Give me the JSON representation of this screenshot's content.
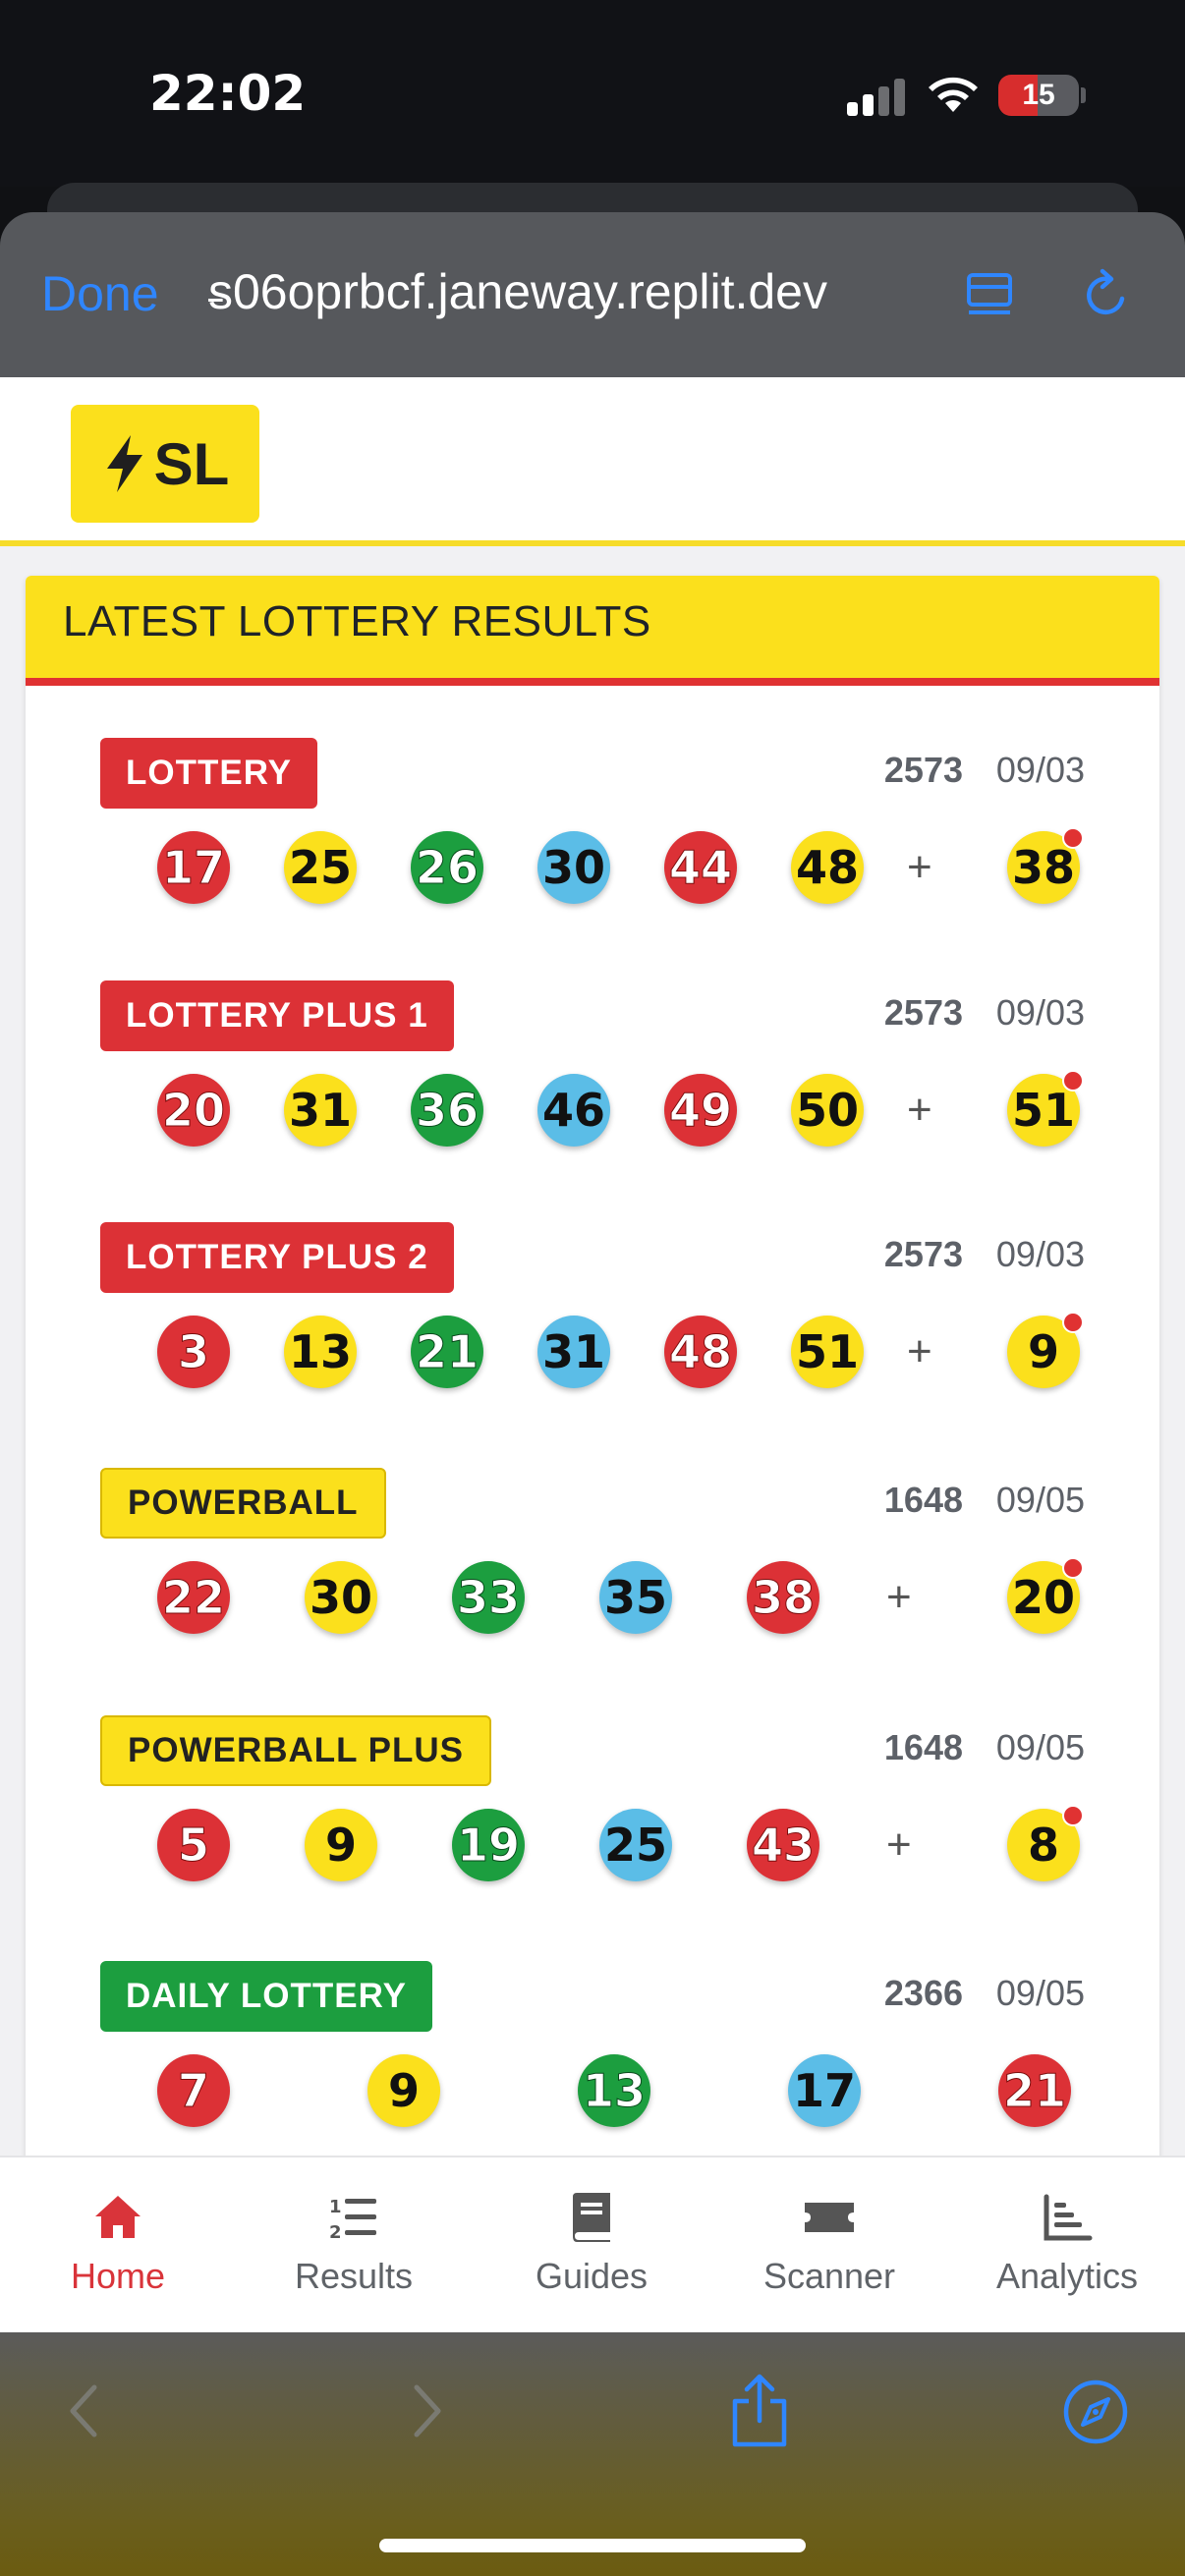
{
  "status_bar": {
    "time": "22:02",
    "battery": "15"
  },
  "browser": {
    "done_label": "Done",
    "url": "̶s06oprbcf.janeway.replit.dev"
  },
  "app": {
    "logo_text": "SL"
  },
  "results": {
    "title": "LATEST LOTTERY RESULTS",
    "games": [
      {
        "name": "LOTTERY",
        "badge_color": "red",
        "draw": "2573",
        "date": "09/03",
        "balls": [
          {
            "n": "17",
            "c": "red"
          },
          {
            "n": "25",
            "c": "yellow"
          },
          {
            "n": "26",
            "c": "green"
          },
          {
            "n": "30",
            "c": "blue"
          },
          {
            "n": "44",
            "c": "red"
          },
          {
            "n": "48",
            "c": "yellow"
          }
        ],
        "plus": "+",
        "bonus": {
          "n": "38",
          "c": "yellow"
        }
      },
      {
        "name": "LOTTERY PLUS 1",
        "badge_color": "red",
        "draw": "2573",
        "date": "09/03",
        "balls": [
          {
            "n": "20",
            "c": "red"
          },
          {
            "n": "31",
            "c": "yellow"
          },
          {
            "n": "36",
            "c": "green"
          },
          {
            "n": "46",
            "c": "blue"
          },
          {
            "n": "49",
            "c": "red"
          },
          {
            "n": "50",
            "c": "yellow"
          }
        ],
        "plus": "+",
        "bonus": {
          "n": "51",
          "c": "yellow"
        }
      },
      {
        "name": "LOTTERY PLUS 2",
        "badge_color": "red",
        "draw": "2573",
        "date": "09/03",
        "balls": [
          {
            "n": "3",
            "c": "red"
          },
          {
            "n": "13",
            "c": "yellow"
          },
          {
            "n": "21",
            "c": "green"
          },
          {
            "n": "31",
            "c": "blue"
          },
          {
            "n": "48",
            "c": "red"
          },
          {
            "n": "51",
            "c": "yellow"
          }
        ],
        "plus": "+",
        "bonus": {
          "n": "9",
          "c": "yellow"
        }
      },
      {
        "name": "POWERBALL",
        "badge_color": "yellow",
        "draw": "1648",
        "date": "09/05",
        "balls": [
          {
            "n": "22",
            "c": "red"
          },
          {
            "n": "30",
            "c": "yellow"
          },
          {
            "n": "33",
            "c": "green"
          },
          {
            "n": "35",
            "c": "blue"
          },
          {
            "n": "38",
            "c": "red"
          }
        ],
        "plus": "+",
        "bonus": {
          "n": "20",
          "c": "yellow"
        }
      },
      {
        "name": "POWERBALL PLUS",
        "badge_color": "yellow",
        "draw": "1648",
        "date": "09/05",
        "balls": [
          {
            "n": "5",
            "c": "red"
          },
          {
            "n": "9",
            "c": "yellow"
          },
          {
            "n": "19",
            "c": "green"
          },
          {
            "n": "25",
            "c": "blue"
          },
          {
            "n": "43",
            "c": "red"
          }
        ],
        "plus": "+",
        "bonus": {
          "n": "8",
          "c": "yellow"
        }
      },
      {
        "name": "DAILY LOTTERY",
        "badge_color": "green",
        "draw": "2366",
        "date": "09/05",
        "balls": [
          {
            "n": "7",
            "c": "red"
          },
          {
            "n": "9",
            "c": "yellow"
          },
          {
            "n": "13",
            "c": "green"
          },
          {
            "n": "17",
            "c": "blue"
          },
          {
            "n": "21",
            "c": "red"
          }
        ],
        "plus": "",
        "bonus": null
      }
    ]
  },
  "nav": {
    "items": [
      {
        "label": "Home",
        "icon": "home-icon",
        "active": true
      },
      {
        "label": "Results",
        "icon": "list-icon",
        "active": false
      },
      {
        "label": "Guides",
        "icon": "book-icon",
        "active": false
      },
      {
        "label": "Scanner",
        "icon": "ticket-icon",
        "active": false
      },
      {
        "label": "Analytics",
        "icon": "chart-icon",
        "active": false
      }
    ]
  },
  "colors": {
    "accent_red": "#dc3136",
    "accent_yellow": "#fbe01c",
    "ball_green": "#1c9e3f",
    "ball_blue": "#5bbde7",
    "link_blue": "#2f86ff"
  }
}
